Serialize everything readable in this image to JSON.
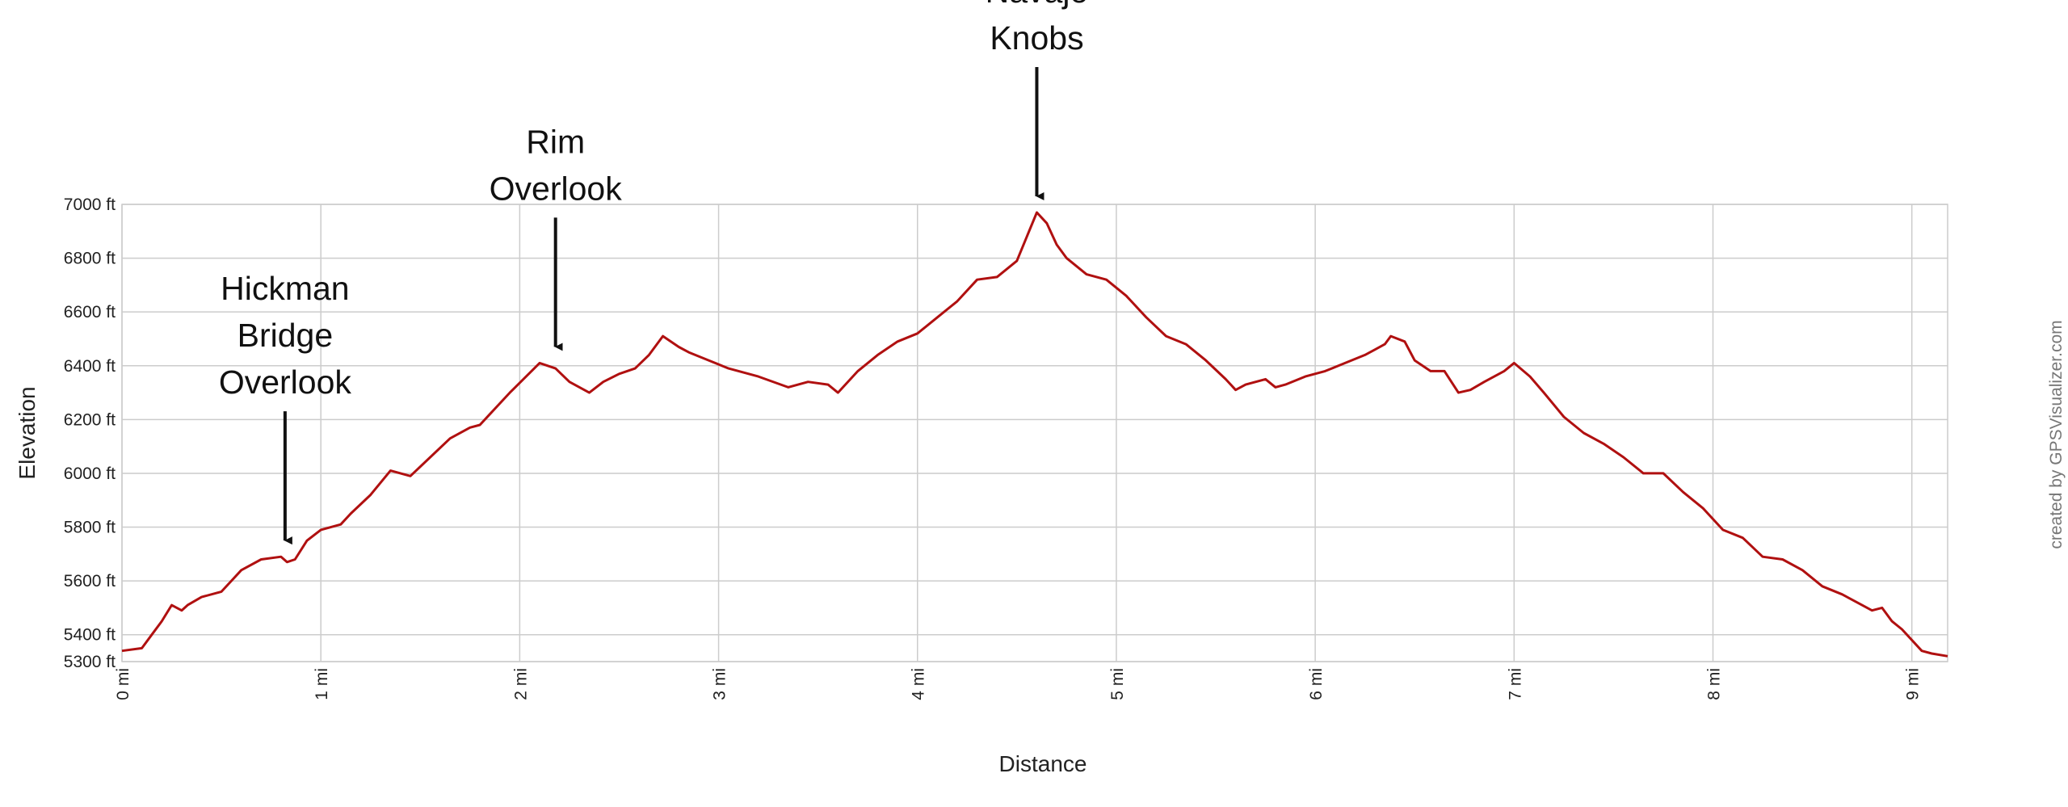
{
  "chart_data": {
    "type": "line",
    "title": "",
    "xlabel": "Distance",
    "ylabel": "Elevation",
    "xlim": [
      0,
      9.18
    ],
    "ylim": [
      5300,
      7000
    ],
    "x_ticks": [
      0,
      1,
      2,
      3,
      4,
      5,
      6,
      7,
      8,
      9
    ],
    "x_tick_labels": [
      "0 mi",
      "1 mi",
      "2 mi",
      "3 mi",
      "4 mi",
      "5 mi",
      "6 mi",
      "7 mi",
      "8 mi",
      "9 mi"
    ],
    "y_ticks": [
      5300,
      5400,
      5600,
      5800,
      6000,
      6200,
      6400,
      6600,
      6800,
      7000
    ],
    "y_tick_labels": [
      "5300 ft",
      "5400 ft",
      "5600 ft",
      "5800 ft",
      "6000 ft",
      "6200 ft",
      "6400 ft",
      "6600 ft",
      "6800 ft",
      "7000 ft"
    ],
    "grid": true,
    "line_color": "#b01010",
    "credit": "created by GPSVisualizer.com",
    "series": [
      {
        "x": [
          0,
          0.1,
          0.15,
          0.2,
          0.25,
          0.3,
          0.33,
          0.4,
          0.5,
          0.55,
          0.6,
          0.7,
          0.8,
          0.83,
          0.87,
          0.93,
          1.0,
          1.1,
          1.15,
          1.25,
          1.35,
          1.45,
          1.55,
          1.65,
          1.75,
          1.8,
          1.85,
          1.95,
          2.1,
          2.18,
          2.25,
          2.35,
          2.42,
          2.5,
          2.58,
          2.65,
          2.72,
          2.8,
          2.85,
          2.95,
          3.05,
          3.2,
          3.35,
          3.45,
          3.55,
          3.6,
          3.7,
          3.8,
          3.9,
          4.0,
          4.1,
          4.2,
          4.3,
          4.4,
          4.5,
          4.6,
          4.65,
          4.7,
          4.75,
          4.85,
          4.95,
          5.05,
          5.15,
          5.25,
          5.35,
          5.45,
          5.55,
          5.6,
          5.65,
          5.75,
          5.8,
          5.85,
          5.95,
          6.05,
          6.15,
          6.25,
          6.3,
          6.35,
          6.38,
          6.45,
          6.5,
          6.58,
          6.65,
          6.72,
          6.78,
          6.85,
          6.95,
          7.0,
          7.08,
          7.15,
          7.25,
          7.35,
          7.45,
          7.55,
          7.65,
          7.75,
          7.85,
          7.95,
          8.05,
          8.15,
          8.25,
          8.35,
          8.45,
          8.55,
          8.65,
          8.75,
          8.8,
          8.85,
          8.9,
          8.95,
          9.05,
          9.1,
          9.18
        ],
        "values": [
          5340,
          5350,
          5400,
          5450,
          5510,
          5490,
          5510,
          5540,
          5560,
          5600,
          5640,
          5680,
          5690,
          5670,
          5680,
          5750,
          5790,
          5810,
          5850,
          5920,
          6010,
          5990,
          6060,
          6130,
          6170,
          6180,
          6220,
          6300,
          6410,
          6390,
          6340,
          6300,
          6340,
          6370,
          6390,
          6440,
          6510,
          6470,
          6450,
          6420,
          6390,
          6360,
          6320,
          6340,
          6330,
          6300,
          6380,
          6440,
          6490,
          6520,
          6580,
          6640,
          6720,
          6730,
          6790,
          6970,
          6930,
          6850,
          6800,
          6740,
          6720,
          6660,
          6580,
          6510,
          6480,
          6420,
          6350,
          6310,
          6330,
          6350,
          6320,
          6330,
          6360,
          6380,
          6410,
          6440,
          6460,
          6480,
          6510,
          6490,
          6420,
          6380,
          6380,
          6300,
          6310,
          6340,
          6380,
          6410,
          6360,
          6300,
          6210,
          6150,
          6110,
          6060,
          6000,
          6000,
          5930,
          5870,
          5790,
          5760,
          5690,
          5680,
          5640,
          5580,
          5550,
          5510,
          5490,
          5500,
          5450,
          5420,
          5340,
          5330,
          5320
        ]
      }
    ],
    "annotations": [
      {
        "lines": [
          "Hickman",
          "Bridge",
          "Overlook"
        ],
        "x": 0.82,
        "y": 5690
      },
      {
        "lines": [
          "Rim",
          "Overlook"
        ],
        "x": 2.18,
        "y": 6410
      },
      {
        "lines": [
          "Navajo",
          "Knobs"
        ],
        "x": 4.6,
        "y": 6970
      }
    ]
  }
}
